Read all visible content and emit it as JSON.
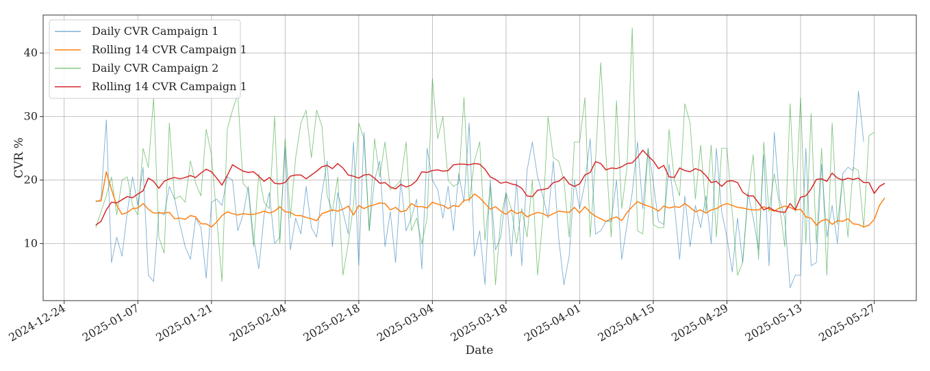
{
  "chart_data": {
    "type": "line",
    "title": "",
    "xlabel": "Date",
    "ylabel": "CVR %",
    "grid": true,
    "legend_position": "top-left",
    "x_start": "2024-12-30",
    "x_end": "2025-05-31",
    "ylim": [
      1,
      46
    ],
    "x_ticks": [
      "2024-12-24",
      "2025-01-07",
      "2025-01-21",
      "2025-02-04",
      "2025-02-18",
      "2025-03-04",
      "2025-03-18",
      "2025-04-01",
      "2025-04-15",
      "2025-04-29",
      "2025-05-13",
      "2025-05-27"
    ],
    "y_ticks": [
      10,
      20,
      30,
      40
    ],
    "series": [
      {
        "name": "Daily CVR Campaign 1",
        "color": "#1f77b4",
        "kind": "daily",
        "values": [
          16.5,
          17.0,
          29.5,
          7.0,
          11.0,
          8.0,
          15.0,
          20.5,
          16.0,
          22.0,
          5.0,
          4.0,
          15.0,
          14.5,
          19.0,
          17.0,
          13.0,
          9.5,
          7.5,
          14.0,
          12.5,
          4.5,
          16.5,
          17.0,
          16.0,
          20.5,
          20.0,
          12.0,
          14.5,
          19.0,
          11.0,
          6.0,
          14.5,
          18.0,
          10.0,
          11.0,
          25.0,
          9.0,
          14.0,
          11.5,
          19.0,
          12.5,
          11.0,
          18.0,
          23.0,
          9.5,
          18.0,
          15.0,
          11.5,
          26.0,
          6.5,
          27.5,
          12.0,
          20.0,
          23.0,
          9.5,
          15.0,
          7.0,
          20.0,
          12.0,
          14.0,
          17.0,
          6.0,
          25.0,
          20.0,
          18.5,
          14.0,
          19.0,
          12.0,
          21.0,
          16.5,
          29.0,
          8.0,
          12.0,
          3.5,
          20.0,
          9.0,
          11.0,
          18.0,
          8.0,
          20.0,
          6.5,
          21.5,
          26.0,
          20.5,
          17.5,
          14.0,
          23.0,
          11.0,
          3.5,
          8.0,
          20.0,
          15.5,
          19.5,
          26.5,
          11.5,
          12.0,
          13.5,
          13.5,
          20.0,
          7.5,
          13.0,
          18.0,
          26.0,
          15.5,
          25.0,
          19.5,
          13.5,
          13.0,
          22.5,
          16.0,
          7.5,
          17.5,
          9.5,
          16.0,
          12.5,
          17.5,
          10.0,
          25.0,
          15.0,
          11.0,
          5.5,
          14.0,
          7.0,
          18.0,
          14.0,
          9.0,
          24.0,
          6.5,
          27.5,
          17.0,
          14.0,
          3.0,
          5.0,
          5.0,
          25.0,
          6.5,
          7.0,
          22.5,
          11.0,
          16.0,
          10.0,
          21.0,
          22.0,
          21.5,
          34.0,
          26.0
        ],
        "extra_value_label": ""
      },
      {
        "name": "Rolling 14 CVR Campaign 1",
        "color": "#ff7f0e",
        "kind": "rolling",
        "values": [
          16.7,
          16.7,
          21.3,
          18.5,
          16.0,
          14.6,
          14.9,
          15.5,
          15.6,
          16.3,
          15.4,
          14.8,
          14.8,
          14.8,
          14.9,
          13.9,
          14.0,
          13.8,
          14.4,
          14.2,
          13.1,
          13.1,
          12.6,
          13.4,
          14.4,
          15.0,
          14.7,
          14.5,
          14.7,
          14.6,
          14.6,
          14.8,
          15.1,
          14.8,
          15.1,
          15.8,
          15.0,
          14.9,
          14.4,
          14.4,
          14.1,
          13.9,
          13.6,
          14.7,
          15.0,
          15.3,
          15.1,
          15.4,
          15.9,
          14.5,
          16.0,
          15.5,
          15.9,
          16.1,
          16.4,
          16.3,
          15.3,
          15.7,
          15.0,
          15.2,
          16.3,
          15.8,
          15.8,
          15.6,
          16.5,
          16.2,
          16.0,
          15.5,
          16.0,
          15.8,
          16.8,
          16.9,
          17.8,
          17.2,
          16.3,
          15.4,
          15.8,
          15.1,
          14.6,
          15.3,
          14.7,
          15.0,
          14.2,
          14.6,
          14.9,
          14.7,
          14.3,
          14.7,
          15.1,
          15.0,
          14.9,
          15.7,
          14.8,
          15.8,
          14.9,
          14.3,
          13.9,
          13.5,
          13.9,
          14.2,
          13.6,
          14.9,
          15.8,
          16.6,
          16.2,
          15.9,
          15.6,
          15.1,
          15.9,
          15.6,
          15.8,
          15.7,
          16.3,
          15.7,
          15.0,
          15.3,
          14.8,
          15.3,
          15.5,
          16.0,
          16.3,
          16.0,
          15.7,
          15.6,
          15.4,
          15.3,
          15.3,
          15.8,
          15.4,
          15.1,
          15.6,
          15.9,
          15.7,
          15.3,
          15.4,
          14.2,
          14.0,
          12.9,
          13.6,
          13.8,
          13.0,
          13.6,
          13.5,
          13.9,
          13.1,
          13.0,
          12.6,
          12.9,
          13.8,
          16.0,
          17.2
        ],
        "extra_value_label": ""
      },
      {
        "name": "Daily CVR Campaign 2",
        "color": "#2ca02c",
        "kind": "daily",
        "values": [
          12.5,
          15.0,
          17.5,
          20.5,
          14.5,
          20.0,
          20.5,
          16.0,
          14.5,
          25.0,
          22.0,
          33.0,
          11.0,
          8.5,
          29.0,
          17.0,
          17.5,
          16.5,
          23.0,
          19.5,
          17.5,
          28.0,
          24.0,
          14.0,
          4.0,
          28.0,
          31.0,
          33.5,
          19.5,
          18.5,
          9.5,
          21.0,
          16.5,
          15.5,
          30.0,
          10.0,
          26.5,
          14.0,
          23.5,
          29.0,
          31.0,
          23.5,
          31.0,
          28.5,
          17.5,
          15.0,
          20.5,
          5.0,
          10.0,
          16.0,
          29.0,
          26.5,
          12.0,
          26.5,
          20.5,
          26.0,
          18.5,
          19.0,
          20.0,
          26.0,
          12.0,
          14.0,
          10.0,
          14.0,
          36.0,
          26.5,
          30.0,
          20.0,
          19.0,
          19.5,
          33.0,
          16.5,
          23.0,
          26.0,
          10.5,
          19.0,
          3.5,
          14.0,
          18.0,
          15.5,
          10.0,
          15.5,
          11.0,
          20.0,
          5.0,
          14.0,
          30.0,
          23.5,
          23.0,
          20.0,
          11.0,
          26.0,
          26.0,
          33.0,
          11.0,
          23.0,
          38.5,
          24.0,
          11.0,
          32.5,
          15.5,
          22.0,
          44.0,
          12.0,
          11.5,
          25.0,
          13.0,
          12.5,
          12.5,
          28.0,
          20.0,
          17.5,
          32.0,
          29.0,
          17.0,
          25.5,
          15.0,
          25.5,
          11.0,
          25.0,
          25.0,
          15.0,
          5.0,
          7.0,
          17.5,
          24.0,
          7.5,
          26.0,
          15.0,
          21.0,
          16.0,
          9.5,
          32.0,
          15.0,
          33.0,
          10.0,
          30.5,
          10.0,
          25.0,
          5.0,
          29.0,
          13.0,
          20.5,
          11.0,
          22.0,
          21.5,
          12.5,
          27.0,
          27.5
        ],
        "extra_value_label": ""
      },
      {
        "name": "Rolling 14 CVR Campaign 1",
        "color": "#d62728",
        "kind": "rolling",
        "values": [
          12.9,
          13.5,
          15.3,
          16.5,
          16.4,
          16.9,
          17.4,
          17.2,
          17.8,
          18.3,
          20.3,
          19.8,
          18.7,
          19.8,
          20.2,
          20.4,
          20.2,
          20.4,
          20.7,
          20.4,
          21.1,
          21.7,
          21.3,
          20.3,
          19.2,
          20.7,
          22.4,
          21.9,
          21.4,
          21.2,
          21.3,
          20.6,
          19.8,
          20.4,
          19.5,
          19.4,
          19.6,
          20.6,
          20.8,
          20.8,
          20.2,
          20.8,
          21.4,
          22.1,
          22.3,
          21.8,
          22.6,
          21.9,
          20.8,
          20.6,
          20.3,
          20.8,
          20.9,
          20.3,
          19.5,
          19.6,
          18.9,
          18.6,
          19.3,
          18.9,
          19.2,
          19.9,
          21.3,
          21.2,
          21.5,
          21.6,
          21.4,
          21.5,
          22.4,
          22.5,
          22.5,
          22.4,
          22.6,
          22.5,
          21.7,
          20.5,
          20.1,
          19.5,
          19.7,
          19.4,
          19.2,
          18.7,
          17.5,
          17.4,
          18.4,
          18.5,
          18.7,
          19.6,
          19.8,
          20.5,
          19.4,
          19.0,
          19.4,
          20.8,
          21.2,
          22.9,
          22.6,
          21.6,
          21.9,
          21.8,
          22.1,
          22.6,
          22.7,
          23.6,
          24.7,
          23.8,
          23.0,
          21.8,
          22.3,
          20.5,
          20.4,
          21.9,
          21.5,
          21.3,
          21.8,
          21.5,
          20.7,
          19.6,
          19.8,
          19.0,
          19.8,
          19.9,
          19.6,
          18.1,
          17.5,
          17.5,
          16.4,
          15.3,
          15.7,
          15.2,
          15.0,
          14.9,
          16.3,
          15.3,
          17.3,
          17.5,
          18.6,
          20.1,
          20.2,
          19.8,
          21.1,
          20.3,
          20.0,
          20.3,
          20.1,
          20.3,
          19.6,
          19.6,
          17.9,
          19.0,
          19.5
        ],
        "extra_value_label": ""
      }
    ]
  }
}
